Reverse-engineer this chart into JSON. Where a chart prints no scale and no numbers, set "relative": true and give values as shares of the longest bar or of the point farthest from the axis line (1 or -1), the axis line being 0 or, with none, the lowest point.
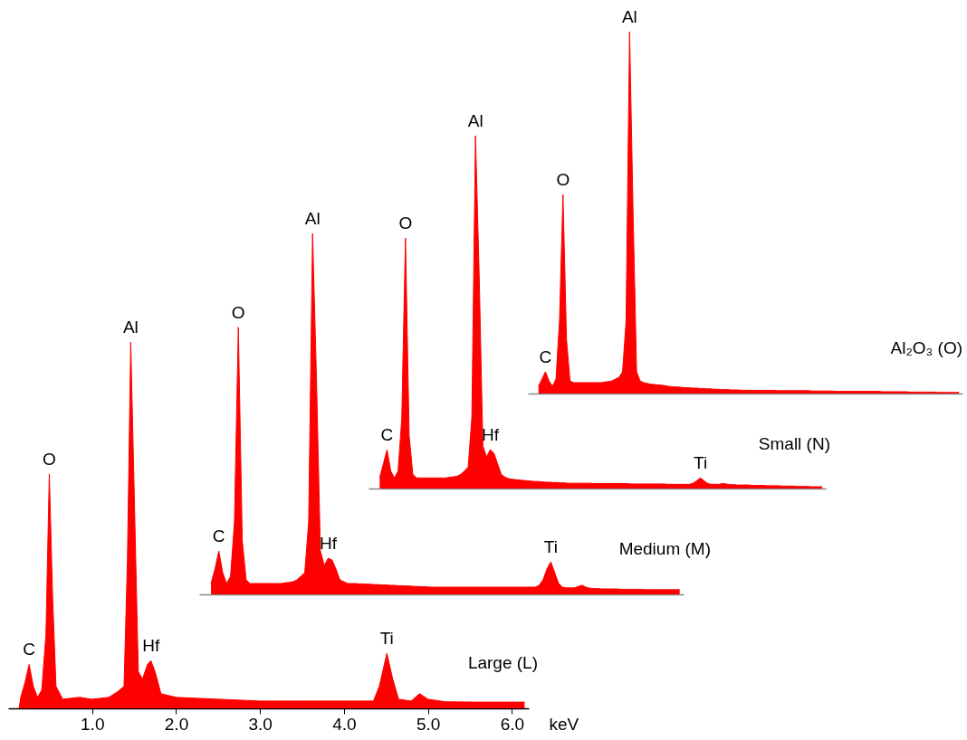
{
  "chart_data": [
    {
      "type": "area",
      "relative": true,
      "xlabel": "keV",
      "xlim": [
        0,
        6.2
      ],
      "tick_labels": "x",
      "xticks": [
        {
          "value": 1,
          "label": "1.0"
        },
        {
          "value": 2,
          "label": "2.0"
        },
        {
          "value": 3,
          "label": "3.0"
        },
        {
          "value": 4,
          "label": "4.0"
        },
        {
          "value": 5,
          "label": "5.0"
        },
        {
          "value": 6,
          "label": "6.0"
        }
      ],
      "x": [
        0.13,
        0.15,
        0.2,
        0.25,
        0.3,
        0.35,
        0.4,
        0.45,
        0.49,
        0.53,
        0.57,
        0.65,
        0.85,
        1.0,
        1.2,
        1.3,
        1.38,
        1.42,
        1.46,
        1.5,
        1.55,
        1.6,
        1.66,
        1.7,
        1.75,
        1.82,
        2.0,
        2.5,
        3.0,
        3.5,
        4.0,
        4.35,
        4.42,
        4.51,
        4.58,
        4.65,
        4.8,
        4.9,
        5.0,
        5.2,
        5.6,
        6.15
      ],
      "series": [
        {
          "name": "Large (L)",
          "color": "#ff0000",
          "values": [
            0,
            0.03,
            0.07,
            0.12,
            0.06,
            0.03,
            0.05,
            0.2,
            0.64,
            0.3,
            0.06,
            0.025,
            0.03,
            0.025,
            0.03,
            0.045,
            0.06,
            0.4,
            1.0,
            0.6,
            0.1,
            0.08,
            0.12,
            0.13,
            0.1,
            0.04,
            0.03,
            0.025,
            0.02,
            0.02,
            0.02,
            0.02,
            0.06,
            0.15,
            0.08,
            0.025,
            0.02,
            0.04,
            0.025,
            0.018,
            0.017,
            0.017
          ]
        }
      ],
      "annotations": [
        {
          "text": "C",
          "x": 0.25,
          "y": 0.12
        },
        {
          "text": "O",
          "x": 0.49,
          "y": 0.64
        },
        {
          "text": "Al",
          "x": 1.46,
          "y": 1.0
        },
        {
          "text": "Hf",
          "x": 1.7,
          "y": 0.13
        },
        {
          "text": "Ti",
          "x": 4.51,
          "y": 0.15
        }
      ]
    },
    {
      "type": "area",
      "relative": true,
      "tick_labels": false,
      "categories": [
        null,
        null,
        null,
        null,
        null,
        null,
        null,
        null,
        null,
        null,
        null,
        null,
        null,
        null,
        null,
        null,
        null,
        null,
        null,
        null,
        null,
        null,
        null,
        null,
        null,
        null,
        null,
        null,
        null,
        null,
        null,
        null,
        null,
        null,
        null,
        null,
        null,
        null,
        null,
        null,
        null,
        null,
        null,
        null,
        null,
        null,
        null,
        null,
        null,
        null,
        null,
        null,
        null,
        null,
        null,
        null,
        null,
        null,
        null,
        null,
        null,
        null,
        null,
        null,
        null,
        null,
        null,
        null,
        null,
        null,
        null,
        null,
        null,
        null,
        null,
        null,
        null,
        null,
        null,
        null,
        null,
        null,
        null,
        null,
        null,
        null,
        null,
        null,
        null,
        null,
        null,
        null,
        null,
        null,
        null,
        null,
        null,
        null,
        null,
        null,
        null,
        null,
        null,
        null,
        null,
        null,
        null,
        null,
        null,
        null,
        null,
        null,
        null,
        null,
        null,
        null,
        null,
        null,
        null,
        null,
        null
      ],
      "series": [
        {
          "name": "Medium (M)",
          "color": "#ff0000",
          "values": [
            0.03,
            0.07,
            0.12,
            0.06,
            0.03,
            0.05,
            0.2,
            0.74,
            0.15,
            0.04,
            0.03,
            0.03,
            0.03,
            0.03,
            0.03,
            0.03,
            0.03,
            0.03,
            0.03,
            0.032,
            0.033,
            0.035,
            0.04,
            0.05,
            0.06,
            0.2,
            1.0,
            0.6,
            0.12,
            0.08,
            0.1,
            0.095,
            0.07,
            0.04,
            0.035,
            0.03,
            0.03,
            0.03,
            0.029,
            0.029,
            0.028,
            0.028,
            0.027,
            0.027,
            0.026,
            0.026,
            0.025,
            0.025,
            0.024,
            0.024,
            0.023,
            0.023,
            0.022,
            0.022,
            0.021,
            0.021,
            0.02,
            0.02,
            0.02,
            0.02,
            0.02,
            0.02,
            0.02,
            0.02,
            0.02,
            0.02,
            0.02,
            0.02,
            0.02,
            0.02,
            0.02,
            0.02,
            0.02,
            0.02,
            0.02,
            0.02,
            0.02,
            0.02,
            0.02,
            0.02,
            0.02,
            0.02,
            0.02,
            0.02,
            0.025,
            0.04,
            0.07,
            0.09,
            0.06,
            0.03,
            0.02,
            0.018,
            0.018,
            0.018,
            0.022,
            0.025,
            0.02,
            0.017,
            0.016,
            0.016,
            0.015,
            0.015,
            0.015,
            0.015,
            0.015,
            0.014,
            0.014,
            0.014,
            0.014,
            0.014,
            0.014,
            0.013,
            0.013,
            0.013,
            0.013,
            0.013,
            0.013,
            0.013,
            0.013,
            0.013,
            0.013
          ]
        }
      ],
      "annotations": [
        {
          "text": "C",
          "y": 0.12
        },
        {
          "text": "O",
          "y": 0.74
        },
        {
          "text": "Al",
          "y": 1.0
        },
        {
          "text": "Hf",
          "y": 0.1
        },
        {
          "text": "Ti",
          "y": 0.09
        }
      ]
    },
    {
      "type": "area",
      "relative": true,
      "tick_labels": false,
      "categories": [
        null,
        null,
        null,
        null,
        null,
        null,
        null,
        null,
        null,
        null,
        null,
        null,
        null,
        null,
        null,
        null,
        null,
        null,
        null,
        null,
        null,
        null,
        null,
        null,
        null,
        null,
        null,
        null,
        null,
        null,
        null,
        null,
        null,
        null,
        null,
        null,
        null,
        null,
        null,
        null,
        null,
        null,
        null,
        null,
        null,
        null,
        null,
        null,
        null,
        null,
        null,
        null,
        null,
        null,
        null,
        null,
        null,
        null,
        null,
        null,
        null,
        null,
        null,
        null,
        null,
        null,
        null,
        null,
        null,
        null,
        null,
        null,
        null,
        null,
        null,
        null,
        null,
        null,
        null,
        null,
        null,
        null,
        null,
        null,
        null,
        null,
        null,
        null,
        null,
        null,
        null,
        null,
        null,
        null,
        null,
        null,
        null,
        null,
        null,
        null,
        null,
        null,
        null,
        null,
        null,
        null,
        null,
        null,
        null,
        null,
        null,
        null,
        null,
        null,
        null,
        null,
        null,
        null,
        null,
        null,
        null
      ],
      "series": [
        {
          "name": "Small (N)",
          "color": "#ff0000",
          "values": [
            0.03,
            0.07,
            0.11,
            0.05,
            0.03,
            0.05,
            0.2,
            0.71,
            0.15,
            0.04,
            0.03,
            0.03,
            0.03,
            0.03,
            0.03,
            0.03,
            0.03,
            0.03,
            0.03,
            0.032,
            0.033,
            0.035,
            0.04,
            0.05,
            0.06,
            0.2,
            1.0,
            0.6,
            0.12,
            0.09,
            0.11,
            0.1,
            0.07,
            0.04,
            0.032,
            0.028,
            0.026,
            0.025,
            0.024,
            0.023,
            0.022,
            0.021,
            0.02,
            0.02,
            0.019,
            0.018,
            0.018,
            0.017,
            0.017,
            0.016,
            0.016,
            0.015,
            0.015,
            0.015,
            0.015,
            0.015,
            0.015,
            0.015,
            0.014,
            0.014,
            0.014,
            0.014,
            0.014,
            0.014,
            0.014,
            0.014,
            0.014,
            0.014,
            0.013,
            0.013,
            0.013,
            0.013,
            0.013,
            0.013,
            0.013,
            0.013,
            0.013,
            0.013,
            0.012,
            0.012,
            0.012,
            0.012,
            0.012,
            0.012,
            0.012,
            0.015,
            0.022,
            0.03,
            0.022,
            0.014,
            0.012,
            0.012,
            0.012,
            0.014,
            0.013,
            0.011,
            0.011,
            0.01,
            0.01,
            0.01,
            0.01,
            0.009,
            0.009,
            0.009,
            0.009,
            0.008,
            0.008,
            0.008,
            0.008,
            0.007,
            0.007,
            0.007,
            0.007,
            0.006,
            0.006,
            0.006,
            0.006,
            0.005,
            0.005,
            0.005,
            0.005
          ]
        }
      ],
      "annotations": [
        {
          "text": "C",
          "y": 0.11
        },
        {
          "text": "O",
          "y": 0.71
        },
        {
          "text": "Al",
          "y": 1.0
        },
        {
          "text": "Hf",
          "y": 0.11
        },
        {
          "text": "Ti",
          "y": 0.03
        }
      ]
    },
    {
      "type": "area",
      "relative": true,
      "tick_labels": false,
      "categories": [
        null,
        null,
        null,
        null,
        null,
        null,
        null,
        null,
        null,
        null,
        null,
        null,
        null,
        null,
        null,
        null,
        null,
        null,
        null,
        null,
        null,
        null,
        null,
        null,
        null,
        null,
        null,
        null,
        null,
        null,
        null,
        null,
        null,
        null,
        null,
        null,
        null,
        null,
        null,
        null,
        null,
        null,
        null,
        null,
        null,
        null,
        null,
        null,
        null,
        null,
        null,
        null,
        null,
        null,
        null,
        null,
        null,
        null,
        null,
        null,
        null,
        null,
        null,
        null,
        null,
        null,
        null,
        null,
        null,
        null,
        null,
        null,
        null,
        null,
        null,
        null,
        null,
        null,
        null,
        null,
        null,
        null,
        null,
        null,
        null,
        null,
        null,
        null,
        null,
        null,
        null,
        null,
        null,
        null,
        null,
        null,
        null,
        null,
        null,
        null,
        null,
        null,
        null,
        null,
        null,
        null,
        null,
        null,
        null,
        null,
        null,
        null,
        null,
        null,
        null,
        null,
        null,
        null,
        null,
        null,
        null
      ],
      "series": [
        {
          "name": "Al₂O₃ (O)",
          "color": "#ff0000",
          "values": [
            0.02,
            0.04,
            0.06,
            0.035,
            0.02,
            0.04,
            0.2,
            0.55,
            0.15,
            0.035,
            0.03,
            0.03,
            0.03,
            0.03,
            0.03,
            0.03,
            0.03,
            0.03,
            0.03,
            0.032,
            0.033,
            0.035,
            0.04,
            0.045,
            0.06,
            0.2,
            1.0,
            0.5,
            0.06,
            0.035,
            0.03,
            0.028,
            0.026,
            0.025,
            0.024,
            0.023,
            0.022,
            0.02,
            0.019,
            0.018,
            0.018,
            0.017,
            0.016,
            0.016,
            0.015,
            0.015,
            0.014,
            0.014,
            0.013,
            0.013,
            0.012,
            0.012,
            0.011,
            0.011,
            0.011,
            0.01,
            0.01,
            0.01,
            0.009,
            0.009,
            0.009,
            0.009,
            0.009,
            0.009,
            0.009,
            0.009,
            0.009,
            0.009,
            0.008,
            0.008,
            0.008,
            0.008,
            0.008,
            0.008,
            0.008,
            0.008,
            0.008,
            0.008,
            0.007,
            0.007,
            0.007,
            0.007,
            0.007,
            0.007,
            0.007,
            0.006,
            0.006,
            0.006,
            0.006,
            0.006,
            0.006,
            0.006,
            0.006,
            0.006,
            0.006,
            0.006,
            0.006,
            0.006,
            0.005,
            0.005,
            0.005,
            0.005,
            0.005,
            0.005,
            0.005,
            0.005,
            0.004,
            0.004,
            0.004,
            0.004,
            0.004,
            0.004,
            0.004,
            0.004,
            0.003,
            0.003,
            0.003,
            0.003,
            0.003,
            0.003,
            0.003
          ]
        }
      ],
      "annotations": [
        {
          "text": "C",
          "y": 0.06
        },
        {
          "text": "O",
          "y": 0.55
        },
        {
          "text": "Al",
          "y": 1.0
        }
      ]
    }
  ]
}
